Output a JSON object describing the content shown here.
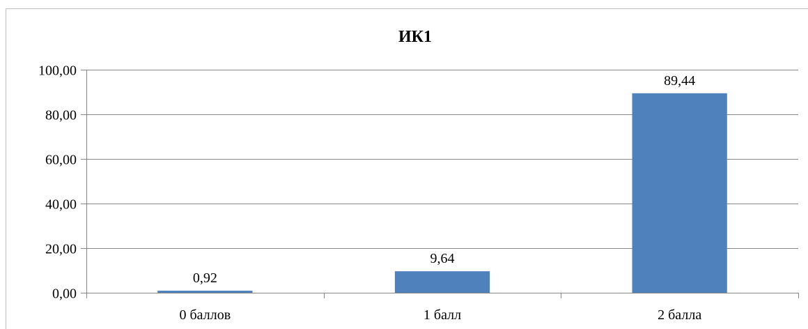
{
  "chart_data": {
    "type": "bar",
    "title": "ИК1",
    "categories": [
      "0 баллов",
      "1 балл",
      "2 балла"
    ],
    "values": [
      0.92,
      9.64,
      89.44
    ],
    "data_labels": [
      "0,92",
      "9,64",
      "89,44"
    ],
    "yticks": [
      0,
      20,
      40,
      60,
      80,
      100
    ],
    "ytick_labels": [
      "0,00",
      "20,00",
      "40,00",
      "60,00",
      "80,00",
      "100,00"
    ],
    "ylim": [
      0,
      100
    ],
    "xlabel": "",
    "ylabel": "",
    "grid": true,
    "legend": "none",
    "bar_color": "#4f81bd",
    "grid_color": "#868686"
  }
}
